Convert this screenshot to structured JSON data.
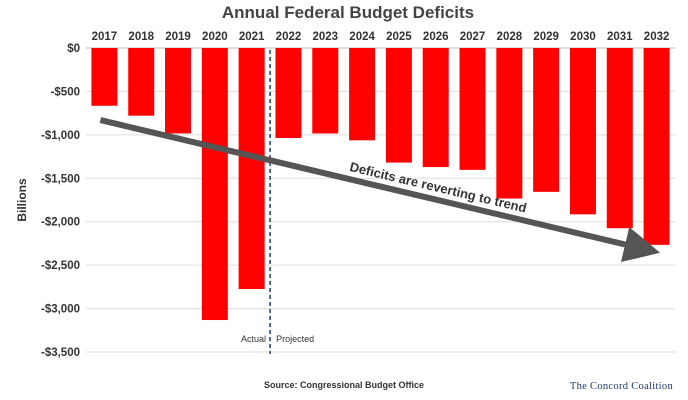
{
  "chart_data": {
    "type": "bar",
    "title": "Annual Federal Budget Deficits",
    "ylabel": "Billions",
    "xlabel": "",
    "categories": [
      "2017",
      "2018",
      "2019",
      "2020",
      "2021",
      "2022",
      "2023",
      "2024",
      "2025",
      "2026",
      "2027",
      "2028",
      "2029",
      "2030",
      "2031",
      "2032"
    ],
    "values": [
      -665,
      -779,
      -984,
      -3132,
      -2775,
      -1036,
      -984,
      -1063,
      -1319,
      -1371,
      -1403,
      -1733,
      -1656,
      -1915,
      -2075,
      -2266
    ],
    "ylim": [
      -3500,
      0
    ],
    "yticks": [
      0,
      -500,
      -1000,
      -1500,
      -2000,
      -2500,
      -3000,
      -3500
    ],
    "ytick_labels": [
      "$0",
      "-$500",
      "-$1,000",
      "-$1,500",
      "-$2,000",
      "-$2,500",
      "-$3,000",
      "-$3,500"
    ],
    "grid": true,
    "bar_color": "#ff0000",
    "divider_after": "2021",
    "period_labels": {
      "left": "Actual",
      "right": "Projected"
    },
    "trend_annotation": "Deficits are reverting to trend",
    "trend_line": {
      "from": {
        "x": "2017",
        "y": -830
      },
      "to": {
        "x": "2032",
        "y": -2310
      }
    },
    "source": "Source: Congressional Budget Office",
    "logo": "The Concord Coalition"
  }
}
